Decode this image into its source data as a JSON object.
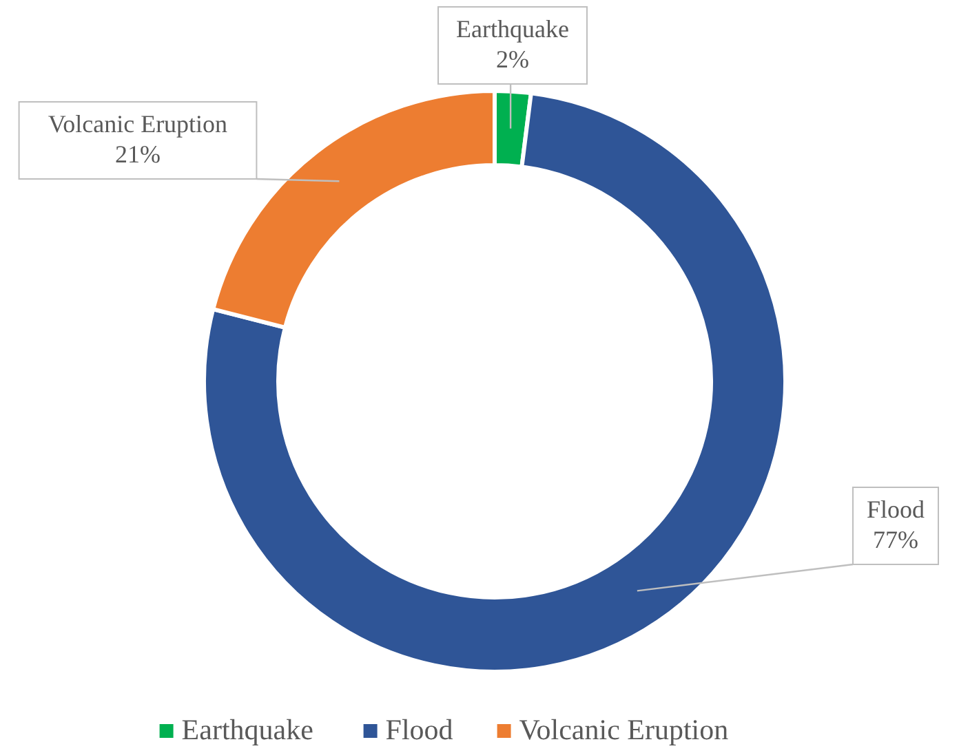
{
  "chart_data": {
    "type": "donut",
    "categories": [
      "Earthquake",
      "Flood",
      "Volcanic Eruption"
    ],
    "values": [
      2,
      77,
      21
    ],
    "colors": [
      "#00b050",
      "#2f5597",
      "#ed7d31"
    ],
    "value_labels": [
      "2%",
      "77%",
      "21%"
    ],
    "legend": "bottom"
  }
}
